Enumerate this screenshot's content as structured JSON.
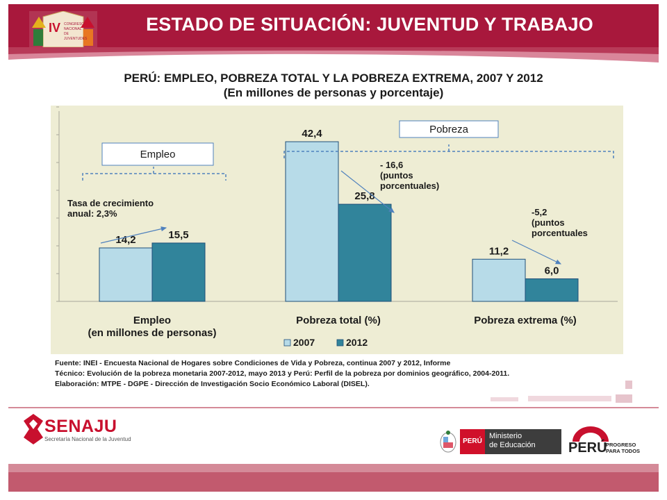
{
  "slide": {
    "header_title": "ESTADO DE SITUACIÓN: JUVENTUD Y TRABAJO",
    "logo_text": [
      "CONGRESO",
      "NACIONAL",
      "DE",
      "JUVENTUDES"
    ]
  },
  "chart_title": [
    "PERÚ: EMPLEO, POBREZA TOTAL Y LA POBREZA EXTREMA, 2007 Y 2012",
    "(En millones de personas y porcentaje)"
  ],
  "chart_data": {
    "type": "bar",
    "title": "PERÚ: EMPLEO, POBREZA TOTAL Y LA POBREZA EXTREMA, 2007 Y 2012",
    "subtitle": "(En millones de personas y porcentaje)",
    "categories": [
      [
        "Empleo",
        "(en millones de personas)"
      ],
      [
        "Pobreza total (%)"
      ],
      [
        "Pobreza extrema (%)"
      ]
    ],
    "series": [
      {
        "name": "2007",
        "values": [
          14.2,
          42.4,
          11.2
        ],
        "labels": [
          "14,2",
          "42,4",
          "11,2"
        ],
        "color": "#b7dbe8"
      },
      {
        "name": "2012",
        "values": [
          15.5,
          25.8,
          6.0
        ],
        "labels": [
          "15,5",
          "25,8",
          "6,0"
        ],
        "color": "#31849b"
      }
    ],
    "ylim": [
      0,
      52
    ],
    "grid": false,
    "legend_position": "bottom-center",
    "group_labels": [
      "Empleo",
      "Pobreza"
    ],
    "annotations": [
      {
        "lines": [
          "Tasa de crecimiento",
          "anual: 2,3%"
        ]
      },
      {
        "lines": [
          "- 16,6",
          "(puntos",
          "porcentuales)"
        ]
      },
      {
        "lines": [
          "-5,2",
          "(puntos",
          "porcentuales"
        ]
      }
    ]
  },
  "sources": [
    "Fuente: INEI - Encuesta Nacional de Hogares sobre Condiciones de Vida y Pobreza, continua 2007 y 2012, Informe",
    "Técnico: Evolución de la pobreza monetaria 2007-2012, mayo 2013 y Perú: Perfil de la pobreza por dominios geográfico, 2004-2011.",
    "Elaboración: MTPE - DGPE -  Dirección de Investigación Socio Económico Laboral (DISEL)."
  ],
  "footer": {
    "senaju_name": "SENAJU",
    "senaju_sub": "Secretaría Nacional de la Juventud",
    "peru_label": "PERÚ",
    "ministry": [
      "Ministerio",
      "de Educación"
    ],
    "progreso_peru": "PERÚ",
    "progreso_tag": [
      "PROGRESO",
      "PARA TODOS"
    ]
  },
  "colors": {
    "header": "#a8183c",
    "panel": "#eeedd4",
    "bar_2007": "#b7dbe8",
    "bar_2012": "#31849b",
    "arrow": "#4f81bd"
  }
}
